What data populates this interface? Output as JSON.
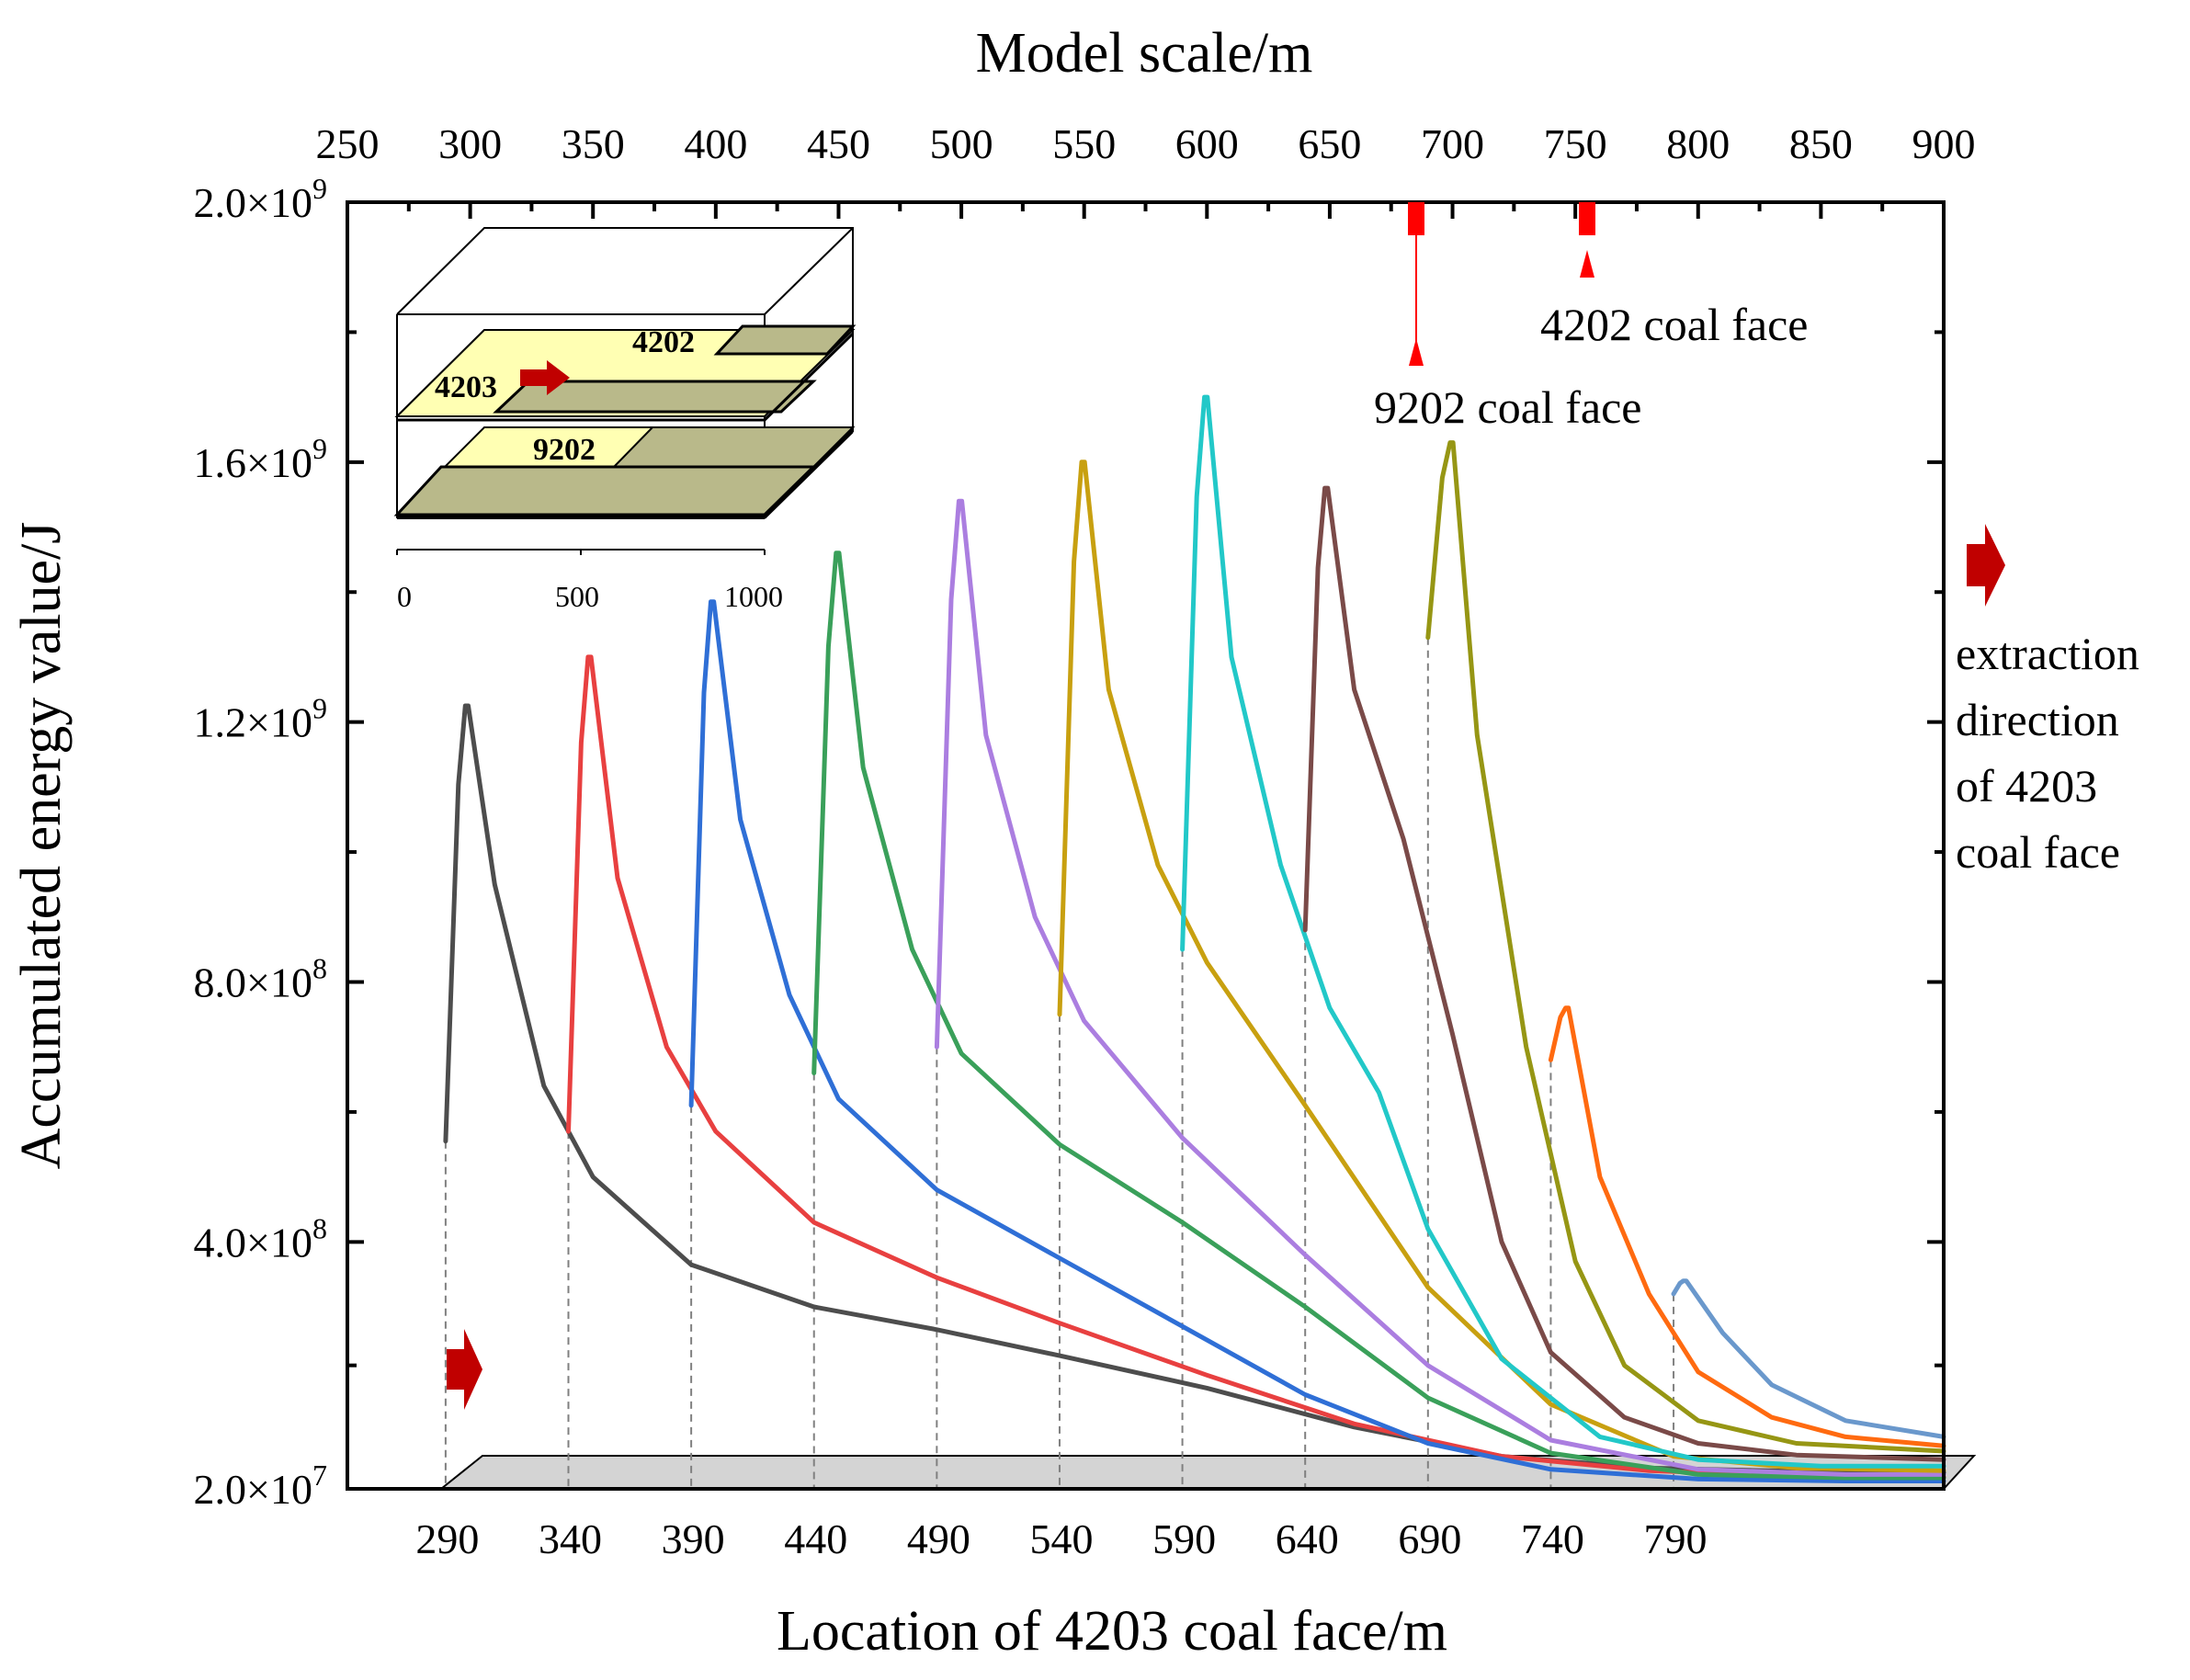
{
  "chart_data": {
    "type": "line",
    "title": "",
    "xlabel": "Location of 4203 coal face/m",
    "ylabel": "Accumulated energy value/J",
    "x2label": "Model scale/m",
    "xlim": [
      250,
      900
    ],
    "ylim": [
      20000000,
      2000000000
    ],
    "xticks_bottom": [
      290,
      340,
      390,
      440,
      490,
      540,
      590,
      640,
      690,
      740,
      790
    ],
    "xticks_top": [
      250,
      300,
      350,
      400,
      450,
      500,
      550,
      600,
      650,
      700,
      750,
      800,
      850,
      900
    ],
    "yticks": [
      {
        "value": 20000000,
        "mant": "2.0",
        "exp": "7"
      },
      {
        "value": 400000000,
        "mant": "4.0",
        "exp": "8"
      },
      {
        "value": 800000000,
        "mant": "8.0",
        "exp": "8"
      },
      {
        "value": 1200000000,
        "mant": "1.2",
        "exp": "9"
      },
      {
        "value": 1600000000,
        "mant": "1.6",
        "exp": "9"
      },
      {
        "value": 2000000000,
        "mant": "2.0",
        "exp": "9"
      }
    ],
    "grid": false,
    "series": [
      {
        "color": "#4d4d4d",
        "start": 290,
        "base": 555000000,
        "peakx": 298,
        "peak": 1225000000,
        "tail": [
          [
            310,
            950000000
          ],
          [
            330,
            640000000
          ],
          [
            350,
            500000000
          ],
          [
            390,
            365000000
          ],
          [
            440,
            300000000
          ],
          [
            490,
            265000000
          ],
          [
            540,
            225000000
          ],
          [
            600,
            175000000
          ],
          [
            660,
            115000000
          ],
          [
            720,
            70000000
          ],
          [
            780,
            52000000
          ],
          [
            840,
            47000000
          ],
          [
            900,
            45000000
          ]
        ]
      },
      {
        "color": "#e84040",
        "start": 340,
        "base": 570000000,
        "peakx": 348,
        "peak": 1300000000,
        "tail": [
          [
            360,
            960000000
          ],
          [
            380,
            700000000
          ],
          [
            400,
            570000000
          ],
          [
            440,
            430000000
          ],
          [
            490,
            345000000
          ],
          [
            540,
            275000000
          ],
          [
            600,
            195000000
          ],
          [
            660,
            120000000
          ],
          [
            720,
            70000000
          ],
          [
            780,
            48000000
          ],
          [
            840,
            40000000
          ],
          [
            900,
            38000000
          ]
        ]
      },
      {
        "color": "#2f6fd6",
        "start": 390,
        "base": 610000000,
        "peakx": 398,
        "peak": 1385000000,
        "tail": [
          [
            410,
            1050000000
          ],
          [
            430,
            780000000
          ],
          [
            450,
            620000000
          ],
          [
            490,
            480000000
          ],
          [
            540,
            375000000
          ],
          [
            590,
            270000000
          ],
          [
            640,
            165000000
          ],
          [
            690,
            90000000
          ],
          [
            740,
            50000000
          ],
          [
            800,
            35000000
          ],
          [
            860,
            32000000
          ],
          [
            900,
            32000000
          ]
        ]
      },
      {
        "color": "#3aa05a",
        "start": 440,
        "base": 660000000,
        "peakx": 449,
        "peak": 1460000000,
        "tail": [
          [
            460,
            1130000000
          ],
          [
            480,
            850000000
          ],
          [
            500,
            690000000
          ],
          [
            540,
            550000000
          ],
          [
            590,
            430000000
          ],
          [
            640,
            300000000
          ],
          [
            690,
            160000000
          ],
          [
            740,
            75000000
          ],
          [
            800,
            42000000
          ],
          [
            860,
            37000000
          ],
          [
            900,
            37000000
          ]
        ]
      },
      {
        "color": "#ab7ee0",
        "start": 490,
        "base": 700000000,
        "peakx": 499,
        "peak": 1540000000,
        "tail": [
          [
            510,
            1180000000
          ],
          [
            530,
            900000000
          ],
          [
            550,
            740000000
          ],
          [
            590,
            560000000
          ],
          [
            640,
            380000000
          ],
          [
            690,
            210000000
          ],
          [
            740,
            95000000
          ],
          [
            800,
            50000000
          ],
          [
            860,
            42000000
          ],
          [
            900,
            42000000
          ]
        ]
      },
      {
        "color": "#c8a010",
        "start": 540,
        "base": 750000000,
        "peakx": 549,
        "peak": 1600000000,
        "tail": [
          [
            560,
            1250000000
          ],
          [
            580,
            980000000
          ],
          [
            600,
            830000000
          ],
          [
            640,
            610000000
          ],
          [
            690,
            330000000
          ],
          [
            740,
            150000000
          ],
          [
            790,
            70000000
          ],
          [
            840,
            52000000
          ],
          [
            900,
            48000000
          ]
        ]
      },
      {
        "color": "#22c8c8",
        "start": 590,
        "base": 850000000,
        "peakx": 599,
        "peak": 1700000000,
        "tail": [
          [
            610,
            1300000000
          ],
          [
            630,
            980000000
          ],
          [
            650,
            760000000
          ],
          [
            670,
            630000000
          ],
          [
            690,
            420000000
          ],
          [
            720,
            220000000
          ],
          [
            760,
            100000000
          ],
          [
            800,
            65000000
          ],
          [
            850,
            55000000
          ],
          [
            900,
            55000000
          ]
        ]
      },
      {
        "color": "#7a4a48",
        "start": 640,
        "base": 880000000,
        "peakx": 648,
        "peak": 1560000000,
        "tail": [
          [
            660,
            1250000000
          ],
          [
            680,
            1020000000
          ],
          [
            700,
            720000000
          ],
          [
            720,
            400000000
          ],
          [
            740,
            230000000
          ],
          [
            770,
            130000000
          ],
          [
            800,
            90000000
          ],
          [
            840,
            72000000
          ],
          [
            900,
            65000000
          ]
        ]
      },
      {
        "color": "#969614",
        "start": 690,
        "base": 1330000000,
        "peakx": 699,
        "peak": 1630000000,
        "tail": [
          [
            710,
            1180000000
          ],
          [
            730,
            700000000
          ],
          [
            750,
            370000000
          ],
          [
            770,
            210000000
          ],
          [
            800,
            125000000
          ],
          [
            840,
            90000000
          ],
          [
            900,
            78000000
          ]
        ]
      },
      {
        "color": "#ff6a10",
        "start": 740,
        "base": 680000000,
        "peakx": 746,
        "peak": 760000000,
        "tail": [
          [
            760,
            500000000
          ],
          [
            780,
            320000000
          ],
          [
            800,
            200000000
          ],
          [
            830,
            130000000
          ],
          [
            860,
            100000000
          ],
          [
            900,
            86000000
          ]
        ]
      },
      {
        "color": "#6a98cc",
        "start": 790,
        "base": 320000000,
        "peakx": 794,
        "peak": 340000000,
        "tail": [
          [
            810,
            260000000
          ],
          [
            830,
            180000000
          ],
          [
            860,
            125000000
          ],
          [
            900,
            100000000
          ]
        ]
      }
    ],
    "annotations": [
      {
        "text": "4202 coal face",
        "model_x": 755
      },
      {
        "text": "9202 coal face",
        "model_x": 685
      }
    ],
    "side_text": [
      "extraction",
      "direction",
      "of 4203",
      "coal face"
    ],
    "inset": {
      "labels": [
        "4202",
        "4203",
        "9202"
      ],
      "xticks": [
        "0",
        "500",
        "1000"
      ]
    }
  }
}
